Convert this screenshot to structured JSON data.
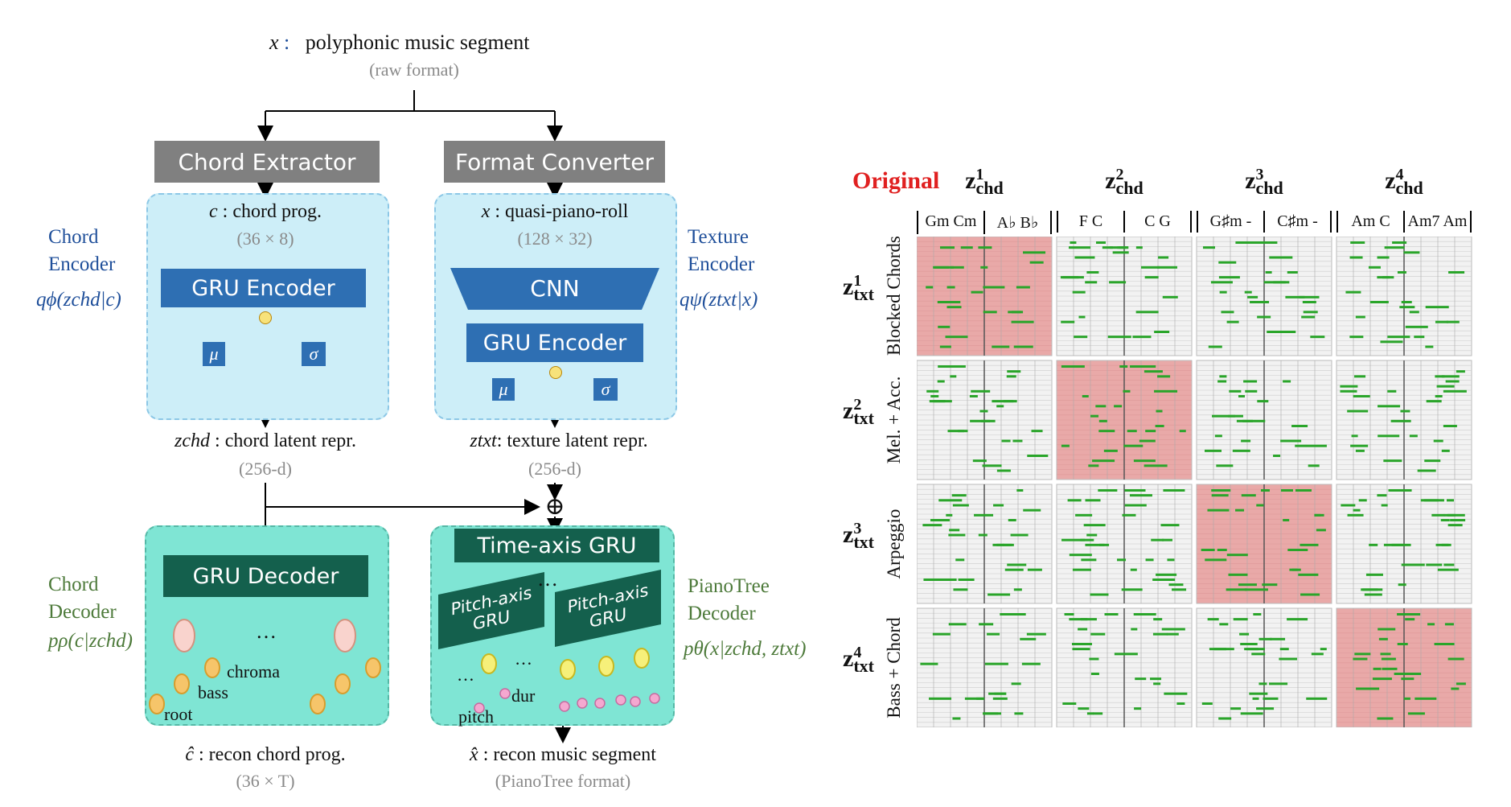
{
  "diagram": {
    "top": {
      "x_symbol": "x",
      "colon": ":",
      "title": "polyphonic music segment",
      "subtitle": "(raw format)"
    },
    "chord_extractor": "Chord Extractor",
    "format_converter": "Format Converter",
    "chord_input": {
      "symbol": "c",
      "text": " : chord prog.",
      "dims": "(36 × 8)"
    },
    "texture_input": {
      "symbol": "x",
      "text": " : quasi-piano-roll",
      "dims": "(128 × 32)"
    },
    "gru_encoder_left": "GRU Encoder",
    "cnn": "CNN",
    "gru_encoder_right": "GRU Encoder",
    "mu": "μ",
    "sigma": "σ",
    "chord_encoder_label": [
      "Chord",
      "Encoder"
    ],
    "chord_encoder_formula": "qϕ(zchd|c)",
    "texture_encoder_label": [
      "Texture",
      "Encoder"
    ],
    "texture_encoder_formula": "qψ(ztxt|x)",
    "z_chd": {
      "symbol": "zchd",
      "text": " : chord latent repr.",
      "dims": "(256-d)"
    },
    "z_txt": {
      "symbol": "ztxt",
      "text": ": texture latent repr.",
      "dims": "(256-d)"
    },
    "oplus": "⊕",
    "gru_decoder": "GRU Decoder",
    "time_axis_gru": "Time-axis GRU",
    "pitch_axis_gru": "Pitch-axis GRU",
    "ellipsis": "…",
    "chroma": "chroma",
    "bass": "bass",
    "root": "root",
    "pitch": "pitch",
    "dur": "dur",
    "chord_decoder_label": [
      "Chord",
      "Decoder"
    ],
    "chord_decoder_formula": "pρ(c|zchd)",
    "pianotree_decoder_label": [
      "PianoTree",
      "Decoder"
    ],
    "pianotree_decoder_formula": "pθ(x|zchd, ztxt)",
    "recon_chord": {
      "symbol": "ĉ",
      "text": " : recon chord prog.",
      "dims": "(36 × T)"
    },
    "recon_music": {
      "symbol": "x̂",
      "text": " : recon music segment",
      "dims": "(PianoTree format)"
    }
  },
  "grid": {
    "original_label": "Original",
    "columns": [
      {
        "head": "z",
        "sup": "1",
        "sub": "chd",
        "chords": [
          "Gm Cm",
          "A♭ B♭"
        ]
      },
      {
        "head": "z",
        "sup": "2",
        "sub": "chd",
        "chords": [
          "F C",
          "C G"
        ]
      },
      {
        "head": "z",
        "sup": "3",
        "sub": "chd",
        "chords": [
          "G♯m -",
          "C♯m -"
        ]
      },
      {
        "head": "z",
        "sup": "4",
        "sub": "chd",
        "chords": [
          "Am C",
          "Am7 Am"
        ]
      }
    ],
    "rows": [
      {
        "head": "z",
        "sup": "1",
        "sub": "txt",
        "label": "Blocked Chords"
      },
      {
        "head": "z",
        "sup": "2",
        "sub": "txt",
        "label": "Mel. + Acc."
      },
      {
        "head": "z",
        "sup": "3",
        "sub": "txt",
        "label": "Arpeggio"
      },
      {
        "head": "z",
        "sup": "4",
        "sub": "txt",
        "label": "Bass + Chord"
      }
    ],
    "colors": {
      "original": "#e9a9a8",
      "note": "#2aa52a",
      "cell": "#e6e6e6",
      "original_red": "#e02020"
    }
  }
}
